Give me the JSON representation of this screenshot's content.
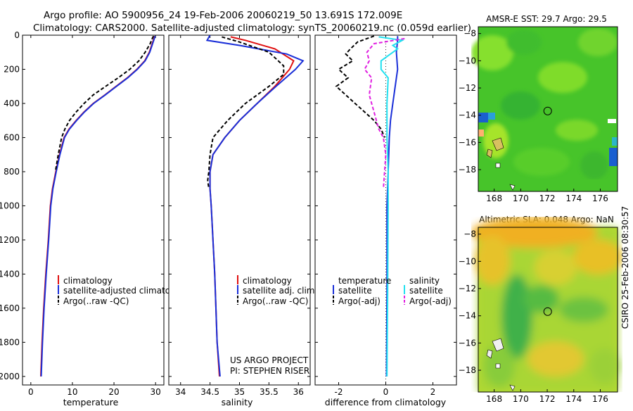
{
  "header": {
    "title_line1": "Argo profile: AO 5900956_24 19-Feb-2006 20060219_50 13.691S 172.009E",
    "title_line2": "Climatology: CARS2000. Satellite-adjusted climatology: synTS_20060219.nc (0.059d earlier)"
  },
  "colors": {
    "climatology": "#e01010",
    "satellite": "#1a2fd8",
    "argo": "#000000",
    "satellite_salinity": "#22e0f0",
    "argo_salinity_diff": "#e020e0"
  },
  "chart_data": [
    {
      "id": "temperature",
      "type": "line",
      "xlabel": "temperature",
      "ylabel": "",
      "xlim": [
        -2,
        32
      ],
      "ylim": [
        2050,
        0
      ],
      "xticks": [
        0,
        10,
        20,
        30
      ],
      "yticks": [
        0,
        200,
        400,
        600,
        800,
        1000,
        1200,
        1400,
        1600,
        1800,
        2000
      ],
      "legend": [
        "climatology",
        "satellite-adjusted climatology",
        "Argo(..raw -QC)"
      ],
      "series": [
        {
          "name": "climatology",
          "color": "#e01010",
          "dash": "",
          "points": [
            [
              29.8,
              5
            ],
            [
              29.6,
              20
            ],
            [
              29.2,
              50
            ],
            [
              28.5,
              100
            ],
            [
              27.4,
              150
            ],
            [
              25.5,
              200
            ],
            [
              23.2,
              250
            ],
            [
              20.5,
              300
            ],
            [
              17.8,
              350
            ],
            [
              15.0,
              400
            ],
            [
              12.8,
              450
            ],
            [
              10.9,
              500
            ],
            [
              9.2,
              550
            ],
            [
              8.0,
              600
            ],
            [
              6.9,
              700
            ],
            [
              6.0,
              800
            ],
            [
              5.2,
              900
            ],
            [
              4.7,
              1000
            ],
            [
              4.2,
              1200
            ],
            [
              3.6,
              1400
            ],
            [
              3.1,
              1600
            ],
            [
              2.7,
              1800
            ],
            [
              2.4,
              2000
            ]
          ]
        },
        {
          "name": "satellite-adjusted climatology",
          "color": "#1a2fd8",
          "dash": "",
          "points": [
            [
              29.9,
              5
            ],
            [
              29.7,
              20
            ],
            [
              29.3,
              50
            ],
            [
              28.6,
              100
            ],
            [
              27.5,
              150
            ],
            [
              25.6,
              200
            ],
            [
              23.3,
              250
            ],
            [
              20.6,
              300
            ],
            [
              17.9,
              350
            ],
            [
              15.1,
              400
            ],
            [
              12.9,
              450
            ],
            [
              11.0,
              500
            ],
            [
              9.3,
              550
            ],
            [
              8.1,
              600
            ],
            [
              7.0,
              700
            ],
            [
              6.1,
              800
            ],
            [
              5.3,
              900
            ],
            [
              4.8,
              1000
            ],
            [
              4.3,
              1200
            ],
            [
              3.7,
              1400
            ],
            [
              3.2,
              1600
            ],
            [
              2.8,
              1800
            ],
            [
              2.5,
              2000
            ]
          ]
        },
        {
          "name": "Argo(..raw -QC)",
          "color": "#000000",
          "dash": "5,3",
          "points": [
            [
              29.5,
              5
            ],
            [
              29.2,
              20
            ],
            [
              28.7,
              50
            ],
            [
              27.5,
              100
            ],
            [
              26.0,
              150
            ],
            [
              23.8,
              200
            ],
            [
              21.0,
              250
            ],
            [
              18.0,
              300
            ],
            [
              15.0,
              350
            ],
            [
              12.8,
              400
            ],
            [
              10.9,
              450
            ],
            [
              9.3,
              500
            ],
            [
              8.2,
              550
            ],
            [
              7.4,
              600
            ],
            [
              6.6,
              700
            ],
            [
              5.9,
              800
            ]
          ]
        }
      ]
    },
    {
      "id": "salinity",
      "type": "line",
      "xlabel": "salinity",
      "ylabel": "",
      "xlim": [
        33.8,
        36.2
      ],
      "ylim": [
        2050,
        0
      ],
      "xticks": [
        34,
        34.5,
        35,
        35.5,
        36
      ],
      "legend": [
        "climatology",
        "satellite adj. clim.",
        "Argo(..raw -QC)"
      ],
      "annotation": [
        "US ARGO PROJECT",
        "PI: STEPHEN RISER"
      ],
      "series": [
        {
          "name": "climatology",
          "color": "#e01010",
          "dash": "",
          "points": [
            [
              34.85,
              10
            ],
            [
              35.1,
              30
            ],
            [
              35.6,
              80
            ],
            [
              35.92,
              150
            ],
            [
              35.85,
              200
            ],
            [
              35.6,
              300
            ],
            [
              35.3,
              400
            ],
            [
              35.0,
              500
            ],
            [
              34.75,
              600
            ],
            [
              34.55,
              700
            ],
            [
              34.5,
              800
            ],
            [
              34.5,
              900
            ],
            [
              34.52,
              1000
            ],
            [
              34.55,
              1200
            ],
            [
              34.58,
              1400
            ],
            [
              34.6,
              1600
            ],
            [
              34.62,
              1800
            ],
            [
              34.66,
              2000
            ]
          ]
        },
        {
          "name": "satellite adj. clim.",
          "color": "#1a2fd8",
          "dash": "",
          "points": [
            [
              34.5,
              0
            ],
            [
              34.45,
              30
            ],
            [
              35.0,
              60
            ],
            [
              35.8,
              110
            ],
            [
              36.08,
              150
            ],
            [
              35.95,
              200
            ],
            [
              35.62,
              300
            ],
            [
              35.3,
              400
            ],
            [
              35.0,
              500
            ],
            [
              34.75,
              600
            ],
            [
              34.55,
              700
            ],
            [
              34.5,
              800
            ],
            [
              34.5,
              900
            ],
            [
              34.52,
              1000
            ],
            [
              34.55,
              1200
            ],
            [
              34.58,
              1400
            ],
            [
              34.6,
              1600
            ],
            [
              34.62,
              1800
            ],
            [
              34.67,
              2000
            ]
          ]
        },
        {
          "name": "Argo(..raw -QC)",
          "color": "#000000",
          "dash": "5,3",
          "points": [
            [
              34.7,
              10
            ],
            [
              35.0,
              40
            ],
            [
              35.5,
              100
            ],
            [
              35.75,
              180
            ],
            [
              35.75,
              230
            ],
            [
              35.5,
              300
            ],
            [
              35.1,
              400
            ],
            [
              34.8,
              500
            ],
            [
              34.55,
              600
            ],
            [
              34.5,
              700
            ],
            [
              34.48,
              800
            ],
            [
              34.46,
              850
            ],
            [
              34.48,
              900
            ]
          ]
        }
      ]
    },
    {
      "id": "difference",
      "type": "line",
      "xlabel": "difference from climatology",
      "ylabel": "",
      "xlim": [
        -3,
        3
      ],
      "ylim": [
        2050,
        0
      ],
      "xticks": [
        -2,
        0,
        2
      ],
      "legend": [
        "temperature",
        "satellite",
        "Argo(-adj)",
        "salinity",
        "satellite",
        "Argo(-adj)"
      ],
      "series": [
        {
          "name": "temperature satellite",
          "color": "#1a2fd8",
          "dash": "",
          "points": [
            [
              0.5,
              5
            ],
            [
              0.5,
              30
            ],
            [
              0.45,
              100
            ],
            [
              0.5,
              200
            ],
            [
              0.4,
              300
            ],
            [
              0.3,
              400
            ],
            [
              0.2,
              500
            ],
            [
              0.15,
              600
            ],
            [
              0.1,
              800
            ],
            [
              0.05,
              1000
            ],
            [
              0.05,
              1500
            ],
            [
              0.03,
              2000
            ]
          ]
        },
        {
          "name": "temperature Argo(-adj)",
          "color": "#000000",
          "dash": "5,3",
          "points": [
            [
              -0.5,
              5
            ],
            [
              -1.2,
              40
            ],
            [
              -1.5,
              80
            ],
            [
              -1.7,
              110
            ],
            [
              -1.4,
              150
            ],
            [
              -2.0,
              200
            ],
            [
              -1.6,
              250
            ],
            [
              -2.1,
              300
            ],
            [
              -1.7,
              350
            ],
            [
              -1.3,
              400
            ],
            [
              -0.9,
              450
            ],
            [
              -0.5,
              500
            ],
            [
              -0.2,
              550
            ],
            [
              -0.05,
              600
            ]
          ]
        },
        {
          "name": "salinity satellite",
          "color": "#22e0f0",
          "dash": "",
          "points": [
            [
              -0.3,
              10
            ],
            [
              0.7,
              30
            ],
            [
              0.3,
              60
            ],
            [
              0.5,
              80
            ],
            [
              -0.2,
              150
            ],
            [
              -0.2,
              200
            ],
            [
              0.1,
              250
            ],
            [
              0.05,
              400
            ],
            [
              0.05,
              600
            ],
            [
              0.1,
              800
            ],
            [
              0.1,
              1000
            ],
            [
              0.08,
              1500
            ],
            [
              0.05,
              2000
            ]
          ]
        },
        {
          "name": "salinity Argo(-adj)",
          "color": "#e020e0",
          "dash": "5,3",
          "points": [
            [
              0.8,
              20
            ],
            [
              -0.5,
              50
            ],
            [
              -0.8,
              100
            ],
            [
              -0.7,
              150
            ],
            [
              -0.9,
              200
            ],
            [
              -0.6,
              250
            ],
            [
              -0.7,
              350
            ],
            [
              -0.5,
              450
            ],
            [
              -0.3,
              550
            ],
            [
              -0.1,
              600
            ],
            [
              0.0,
              700
            ],
            [
              -0.05,
              800
            ],
            [
              -0.1,
              900
            ]
          ]
        }
      ]
    },
    {
      "id": "sst_map",
      "type": "heatmap",
      "title": "AMSR-E SST: 29.7 Argo: 29.5",
      "xticks": [
        168,
        170,
        172,
        174,
        176
      ],
      "yticks": [
        -8,
        -10,
        -12,
        -14,
        -16,
        -18
      ],
      "xlim": [
        166.8,
        177.3
      ],
      "ylim": [
        -19.6,
        -7.5
      ],
      "argo_position": [
        172.0,
        -13.7
      ]
    },
    {
      "id": "sla_map",
      "type": "heatmap",
      "title": "Altimetric SLA: 0.048 Argo: NaN",
      "xticks": [
        168,
        170,
        172,
        174,
        176
      ],
      "yticks": [
        -8,
        -10,
        -12,
        -14,
        -16,
        -18
      ],
      "xlim": [
        166.8,
        177.3
      ],
      "ylim": [
        -19.6,
        -7.5
      ],
      "argo_position": [
        172.0,
        -13.7
      ]
    }
  ],
  "footer": {
    "timestamp": "CSIRO 25-Feb-2006 08:30:57"
  }
}
